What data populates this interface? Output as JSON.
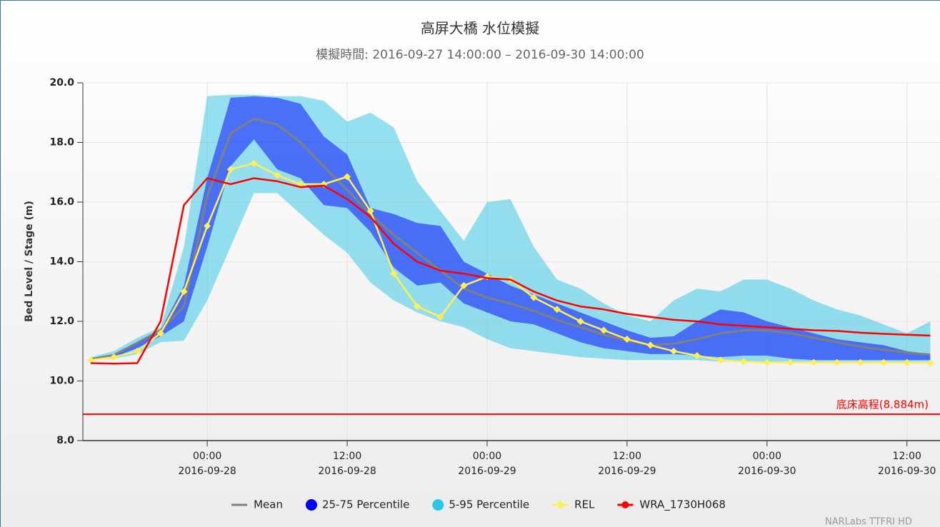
{
  "chart_data": {
    "type": "line",
    "title": "高屏大橋 水位模擬",
    "subtitle": "模擬時間: 2016-09-27 14:00:00 – 2016-09-30 14:00:00",
    "y_label": "Bed Level / Stage (m)",
    "x": [
      "2016-09-27 14:00",
      "2016-09-27 16:00",
      "2016-09-27 18:00",
      "2016-09-27 20:00",
      "2016-09-27 22:00",
      "2016-09-28 00:00",
      "2016-09-28 02:00",
      "2016-09-28 04:00",
      "2016-09-28 06:00",
      "2016-09-28 08:00",
      "2016-09-28 10:00",
      "2016-09-28 12:00",
      "2016-09-28 14:00",
      "2016-09-28 16:00",
      "2016-09-28 18:00",
      "2016-09-28 20:00",
      "2016-09-28 22:00",
      "2016-09-29 00:00",
      "2016-09-29 02:00",
      "2016-09-29 04:00",
      "2016-09-29 06:00",
      "2016-09-29 08:00",
      "2016-09-29 10:00",
      "2016-09-29 12:00",
      "2016-09-29 14:00",
      "2016-09-29 16:00",
      "2016-09-29 18:00",
      "2016-09-29 20:00",
      "2016-09-29 22:00",
      "2016-09-30 00:00",
      "2016-09-30 02:00",
      "2016-09-30 04:00",
      "2016-09-30 06:00",
      "2016-09-30 08:00",
      "2016-09-30 10:00",
      "2016-09-30 12:00",
      "2016-09-30 14:00"
    ],
    "xlim": [
      "2016-09-27 13:20",
      "2016-09-30 14:50"
    ],
    "xticks": [
      {
        "value": "2016-09-28 00:00",
        "label": [
          "00:00",
          "2016-09-28"
        ]
      },
      {
        "value": "2016-09-28 12:00",
        "label": [
          "12:00",
          "2016-09-28"
        ]
      },
      {
        "value": "2016-09-29 00:00",
        "label": [
          "00:00",
          "2016-09-29"
        ]
      },
      {
        "value": "2016-09-29 12:00",
        "label": [
          "12:00",
          "2016-09-29"
        ]
      },
      {
        "value": "2016-09-30 00:00",
        "label": [
          "00:00",
          "2016-09-30"
        ]
      },
      {
        "value": "2016-09-30 12:00",
        "label": [
          "12:00",
          "2016-09-30"
        ]
      }
    ],
    "ylim": [
      8,
      20
    ],
    "yticks": [
      {
        "value": 8,
        "label": "8.0"
      },
      {
        "value": 10,
        "label": "10.0"
      },
      {
        "value": 12,
        "label": "12.0"
      },
      {
        "value": 14,
        "label": "14.0"
      },
      {
        "value": 16,
        "label": "16.0"
      },
      {
        "value": 18,
        "label": "18.0"
      },
      {
        "value": 20,
        "label": "20.0"
      }
    ],
    "grid": true,
    "series": [
      {
        "name": "Mean",
        "type": "line",
        "color": "#808080",
        "values": [
          10.73,
          10.87,
          11.28,
          11.7,
          12.5,
          16.2,
          18.3,
          18.8,
          18.6,
          18.0,
          17.2,
          16.4,
          15.6,
          14.9,
          14.3,
          13.7,
          13.1,
          12.8,
          12.6,
          12.35,
          12.05,
          11.8,
          11.55,
          11.35,
          11.2,
          11.25,
          11.4,
          11.6,
          11.7,
          11.7,
          11.6,
          11.45,
          11.3,
          11.15,
          11.05,
          10.95,
          10.88
        ]
      },
      {
        "name": "25-75 Percentile",
        "type": "arearange",
        "color": "#0000ff",
        "marker": "circle",
        "low": [
          10.7,
          10.8,
          11.1,
          11.5,
          12.0,
          14.5,
          17.2,
          18.1,
          17.1,
          16.8,
          15.9,
          15.8,
          15.0,
          13.8,
          13.2,
          13.3,
          12.6,
          12.3,
          12.0,
          11.9,
          11.6,
          11.3,
          11.1,
          11.0,
          10.9,
          10.9,
          10.85,
          10.8,
          10.85,
          10.85,
          10.75,
          10.7,
          10.7,
          10.7,
          10.7,
          10.7,
          10.7
        ],
        "high": [
          10.75,
          10.9,
          11.3,
          11.7,
          13.2,
          16.8,
          19.5,
          19.55,
          19.5,
          19.3,
          18.2,
          17.6,
          15.8,
          15.6,
          15.3,
          15.2,
          14.0,
          13.6,
          13.2,
          12.9,
          12.6,
          12.3,
          12.0,
          11.7,
          11.45,
          11.5,
          12.0,
          12.4,
          12.3,
          12.0,
          11.8,
          11.6,
          11.4,
          11.3,
          11.2,
          11.0,
          10.9
        ]
      },
      {
        "name": "5-95 Percentile",
        "type": "arearange",
        "color": "#2ec5e6",
        "marker": "circle",
        "low": [
          10.7,
          10.75,
          10.9,
          11.3,
          11.35,
          12.7,
          14.5,
          16.3,
          16.3,
          15.6,
          14.9,
          14.3,
          13.3,
          12.7,
          12.3,
          12.0,
          11.8,
          11.4,
          11.1,
          11.0,
          10.9,
          10.8,
          10.75,
          10.7,
          10.7,
          10.7,
          10.7,
          10.65,
          10.65,
          10.65,
          10.65,
          10.65,
          10.65,
          10.65,
          10.65,
          10.65,
          10.65
        ],
        "high": [
          10.8,
          11.0,
          11.45,
          11.8,
          14.5,
          19.55,
          19.6,
          19.6,
          19.55,
          19.55,
          19.4,
          18.7,
          19.0,
          18.5,
          16.7,
          15.7,
          14.7,
          16.0,
          16.1,
          14.5,
          13.4,
          13.1,
          12.6,
          12.2,
          12.0,
          12.7,
          13.1,
          13.0,
          13.4,
          13.4,
          13.1,
          12.7,
          12.4,
          12.2,
          11.9,
          11.6,
          12.0
        ]
      },
      {
        "name": "REL",
        "type": "line",
        "color": "#ffee55",
        "marker": "diamond",
        "point_markers": true,
        "values": [
          10.7,
          10.8,
          11.0,
          11.6,
          13.0,
          15.2,
          17.1,
          17.3,
          16.9,
          16.6,
          16.6,
          16.85,
          15.7,
          13.6,
          12.5,
          12.15,
          13.2,
          13.5,
          13.4,
          12.8,
          12.4,
          12.0,
          11.7,
          11.4,
          11.2,
          11.0,
          10.85,
          10.7,
          10.65,
          10.62,
          10.62,
          10.62,
          10.62,
          10.62,
          10.62,
          10.62,
          10.6
        ]
      },
      {
        "name": "WRA_1730H068",
        "type": "line",
        "color": "#ff0000",
        "marker": "circle",
        "values": [
          10.6,
          10.58,
          10.6,
          12.0,
          15.9,
          16.8,
          16.6,
          16.8,
          16.7,
          16.5,
          16.55,
          16.1,
          15.5,
          14.6,
          14.0,
          13.7,
          13.6,
          13.45,
          13.4,
          13.0,
          12.7,
          12.5,
          12.4,
          12.25,
          12.15,
          12.05,
          12.0,
          11.9,
          11.85,
          11.8,
          11.75,
          11.7,
          11.68,
          11.62,
          11.58,
          11.55,
          11.52
        ]
      }
    ],
    "plot_lines": [
      {
        "value": 8.884,
        "label": "底床高程(8.884m)",
        "color": "#ff0000"
      }
    ],
    "credits": "NARLabs TTFRI HD"
  }
}
